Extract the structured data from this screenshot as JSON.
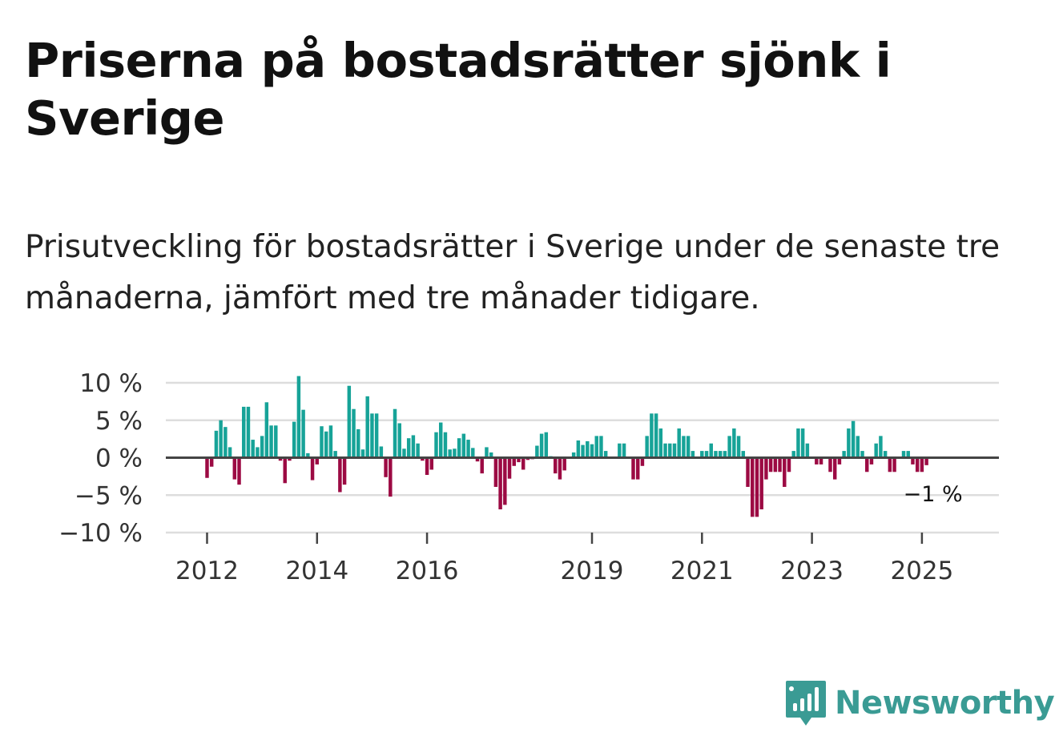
{
  "title": "Priserna på bostadsrätter sjönk i Sverige",
  "subtitle": "Prisutveckling för bostadsrätter i Sverige under de senaste tre månaderna, jämfört med tre månader tidigare.",
  "brand": {
    "name": "Newsworthy",
    "color": "#3a9b94"
  },
  "colors": {
    "positive": "#17a398",
    "negative": "#9c0a43",
    "grid": "#dddddd",
    "zero_line": "#444444",
    "tick": "#444444"
  },
  "chart_data": {
    "type": "bar",
    "title": "Priserna på bostadsrätter sjönk i Sverige",
    "xlabel": "",
    "ylabel": "",
    "ylim": [
      -10,
      10
    ],
    "y_ticks": [
      10,
      5,
      0,
      -5,
      -10
    ],
    "y_tick_labels": [
      "10 %",
      "5 %",
      "0 %",
      "−5 %",
      "−10 %"
    ],
    "x_range": [
      2011.25,
      2026.4
    ],
    "x_ticks": [
      2012,
      2014,
      2016,
      2019,
      2021,
      2023,
      2025
    ],
    "x_tick_labels": [
      "2012",
      "2014",
      "2016",
      "2019",
      "2021",
      "2023",
      "2025"
    ],
    "start": "2012-01",
    "frequency": "monthly",
    "values": [
      -2.7,
      -1.2,
      3.6,
      5.0,
      4.1,
      1.4,
      -2.9,
      -3.6,
      6.8,
      6.8,
      2.4,
      1.4,
      2.9,
      7.4,
      4.3,
      4.3,
      -0.4,
      -3.4,
      -0.4,
      4.8,
      10.9,
      6.4,
      0.6,
      -3.0,
      -0.9,
      4.2,
      3.5,
      4.3,
      0.9,
      -4.6,
      -3.6,
      9.6,
      6.5,
      3.8,
      1.1,
      8.2,
      5.9,
      5.9,
      1.5,
      -2.6,
      -5.2,
      6.5,
      4.6,
      1.2,
      2.6,
      3.0,
      1.9,
      -0.4,
      -2.3,
      -1.6,
      3.4,
      4.7,
      3.4,
      1.1,
      1.2,
      2.6,
      3.2,
      2.4,
      1.3,
      -0.5,
      -2.1,
      1.4,
      0.7,
      -3.9,
      -6.9,
      -6.3,
      -2.8,
      -1.1,
      -0.6,
      -1.6,
      -0.3,
      -0.2,
      1.6,
      3.2,
      3.4,
      0.2,
      -2.1,
      -2.9,
      -1.7,
      0.1,
      0.7,
      2.3,
      1.7,
      2.2,
      1.8,
      2.9,
      2.9,
      0.9,
      0.1,
      0.1,
      1.9,
      1.9,
      -0.1,
      -2.9,
      -2.9,
      -1.1,
      2.9,
      5.9,
      5.9,
      3.9,
      1.9,
      1.9,
      1.9,
      3.9,
      2.9,
      2.9,
      0.9,
      0.1,
      0.9,
      0.9,
      1.9,
      0.9,
      0.9,
      0.9,
      2.9,
      3.9,
      2.9,
      0.9,
      -3.9,
      -7.9,
      -7.9,
      -6.9,
      -2.9,
      -1.9,
      -1.9,
      -1.9,
      -3.9,
      -1.9,
      0.9,
      3.9,
      3.9,
      1.9,
      0.1,
      -0.9,
      -0.9,
      -0.1,
      -1.9,
      -2.9,
      -0.9,
      0.9,
      3.9,
      4.9,
      2.9,
      0.9,
      -1.9,
      -0.9,
      1.9,
      2.9,
      0.9,
      -1.9,
      -1.9,
      -0.1,
      0.9,
      0.9,
      -0.9,
      -1.9,
      -1.9,
      -1.0
    ],
    "last_label": "−1 %"
  }
}
